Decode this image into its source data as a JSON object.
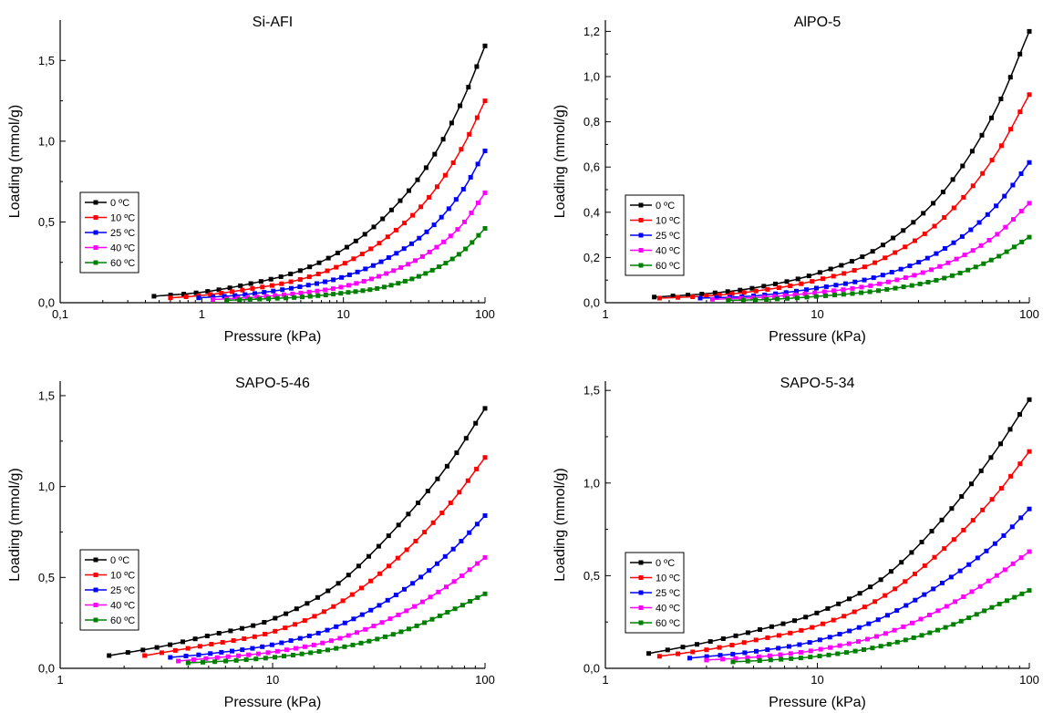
{
  "chart_data": [
    {
      "type": "line",
      "title": "Si-AFI",
      "xlabel": "Pressure (kPa)",
      "ylabel": "Loading (mmol/g)",
      "xscale": "log",
      "xlim": [
        0.1,
        100
      ],
      "ylim": [
        0,
        1.75
      ],
      "xticks": [
        {
          "v": 0.1,
          "label": "0,1"
        },
        {
          "v": 1,
          "label": "1"
        },
        {
          "v": 10,
          "label": "10"
        },
        {
          "v": 100,
          "label": "100"
        }
      ],
      "yticks": [
        {
          "v": 0,
          "label": "0,0"
        },
        {
          "v": 0.5,
          "label": "0,5"
        },
        {
          "v": 1.0,
          "label": "1,0"
        },
        {
          "v": 1.5,
          "label": "1,5"
        }
      ],
      "legend": "middle-left",
      "grid": false,
      "series": [
        {
          "name": "0 ºC",
          "color": "#000000",
          "x": [
            0.46,
            1,
            2,
            5,
            10,
            20,
            40,
            70,
            100
          ],
          "y": [
            0.04,
            0.065,
            0.11,
            0.2,
            0.33,
            0.54,
            0.86,
            1.26,
            1.59
          ]
        },
        {
          "name": "10 ºC",
          "color": "#ff0000",
          "x": [
            0.6,
            1,
            2,
            5,
            10,
            20,
            40,
            70,
            100
          ],
          "y": [
            0.03,
            0.045,
            0.08,
            0.145,
            0.24,
            0.4,
            0.65,
            0.97,
            1.25
          ]
        },
        {
          "name": "25 ºC",
          "color": "#0000ff",
          "x": [
            0.95,
            2,
            5,
            10,
            20,
            40,
            70,
            100
          ],
          "y": [
            0.03,
            0.05,
            0.1,
            0.16,
            0.27,
            0.45,
            0.7,
            0.94
          ]
        },
        {
          "name": "40 ºC",
          "color": "#ff00ff",
          "x": [
            1.2,
            2,
            5,
            10,
            20,
            40,
            70,
            100
          ],
          "y": [
            0.02,
            0.03,
            0.06,
            0.1,
            0.18,
            0.31,
            0.49,
            0.68
          ]
        },
        {
          "name": "60 ºC",
          "color": "#008000",
          "x": [
            1.5,
            3,
            5,
            10,
            20,
            40,
            70,
            100
          ],
          "y": [
            0.015,
            0.025,
            0.035,
            0.06,
            0.1,
            0.19,
            0.32,
            0.46
          ]
        }
      ]
    },
    {
      "type": "line",
      "title": "AlPO-5",
      "xlabel": "Pressure (kPa)",
      "ylabel": "Loading (mmol/g)",
      "xscale": "log",
      "xlim": [
        1,
        100
      ],
      "ylim": [
        0,
        1.25
      ],
      "xticks": [
        {
          "v": 1,
          "label": "1"
        },
        {
          "v": 10,
          "label": "10"
        },
        {
          "v": 100,
          "label": "100"
        }
      ],
      "yticks": [
        {
          "v": 0,
          "label": "0,0"
        },
        {
          "v": 0.2,
          "label": "0,2"
        },
        {
          "v": 0.4,
          "label": "0,4"
        },
        {
          "v": 0.6,
          "label": "0,6"
        },
        {
          "v": 0.8,
          "label": "0,8"
        },
        {
          "v": 1.0,
          "label": "1,0"
        },
        {
          "v": 1.2,
          "label": "1,2"
        }
      ],
      "legend": "middle-left",
      "grid": false,
      "series": [
        {
          "name": "0 ºC",
          "color": "#000000",
          "x": [
            1.7,
            3,
            5,
            10,
            20,
            40,
            70,
            100
          ],
          "y": [
            0.025,
            0.04,
            0.065,
            0.13,
            0.25,
            0.5,
            0.86,
            1.2
          ]
        },
        {
          "name": "10 ºC",
          "color": "#ff0000",
          "x": [
            1.8,
            3,
            5,
            10,
            20,
            40,
            70,
            100
          ],
          "y": [
            0.02,
            0.03,
            0.05,
            0.1,
            0.19,
            0.38,
            0.66,
            0.92
          ]
        },
        {
          "name": "25 ºC",
          "color": "#0000ff",
          "x": [
            2.8,
            5,
            10,
            20,
            40,
            70,
            100
          ],
          "y": [
            0.02,
            0.03,
            0.065,
            0.12,
            0.24,
            0.43,
            0.62
          ]
        },
        {
          "name": "40 ºC",
          "color": "#ff00ff",
          "x": [
            3.2,
            5,
            10,
            20,
            40,
            70,
            100
          ],
          "y": [
            0.015,
            0.022,
            0.045,
            0.085,
            0.17,
            0.3,
            0.44
          ]
        },
        {
          "name": "60 ºC",
          "color": "#008000",
          "x": [
            3.8,
            6,
            10,
            20,
            40,
            70,
            100
          ],
          "y": [
            0.01,
            0.015,
            0.028,
            0.055,
            0.11,
            0.2,
            0.29
          ]
        }
      ]
    },
    {
      "type": "line",
      "title": "SAPO-5-46",
      "xlabel": "Pressure (kPa)",
      "ylabel": "Loading (mmol/g)",
      "xscale": "log",
      "xlim": [
        1,
        100
      ],
      "ylim": [
        0,
        1.58
      ],
      "xticks": [
        {
          "v": 1,
          "label": "1"
        },
        {
          "v": 10,
          "label": "10"
        },
        {
          "v": 100,
          "label": "100"
        }
      ],
      "yticks": [
        {
          "v": 0,
          "label": "0,0"
        },
        {
          "v": 0.5,
          "label": "0,5"
        },
        {
          "v": 1.0,
          "label": "1,0"
        },
        {
          "v": 1.5,
          "label": "1,5"
        }
      ],
      "legend": "lower-left",
      "grid": false,
      "series": [
        {
          "name": "0 ºC",
          "color": "#000000",
          "x": [
            1.7,
            3,
            5,
            10,
            20,
            40,
            70,
            100
          ],
          "y": [
            0.07,
            0.12,
            0.18,
            0.27,
            0.46,
            0.8,
            1.15,
            1.43
          ]
        },
        {
          "name": "10 ºC",
          "color": "#ff0000",
          "x": [
            2.5,
            5,
            10,
            20,
            40,
            70,
            100
          ],
          "y": [
            0.07,
            0.13,
            0.2,
            0.35,
            0.62,
            0.92,
            1.16
          ]
        },
        {
          "name": "25 ºC",
          "color": "#0000ff",
          "x": [
            3.3,
            5,
            10,
            20,
            40,
            70,
            100
          ],
          "y": [
            0.06,
            0.08,
            0.13,
            0.23,
            0.42,
            0.65,
            0.84
          ]
        },
        {
          "name": "40 ºC",
          "color": "#ff00ff",
          "x": [
            3.6,
            5,
            10,
            20,
            40,
            70,
            100
          ],
          "y": [
            0.04,
            0.055,
            0.09,
            0.16,
            0.3,
            0.47,
            0.61
          ]
        },
        {
          "name": "60 ºC",
          "color": "#008000",
          "x": [
            4,
            6,
            10,
            20,
            40,
            70,
            100
          ],
          "y": [
            0.03,
            0.04,
            0.06,
            0.11,
            0.2,
            0.32,
            0.41
          ]
        }
      ]
    },
    {
      "type": "line",
      "title": "SAPO-5-34",
      "xlabel": "Pressure (kPa)",
      "ylabel": "Loading (mmol/g)",
      "xscale": "log",
      "xlim": [
        1,
        100
      ],
      "ylim": [
        0,
        1.55
      ],
      "xticks": [
        {
          "v": 1,
          "label": "1"
        },
        {
          "v": 10,
          "label": "10"
        },
        {
          "v": 100,
          "label": "100"
        }
      ],
      "yticks": [
        {
          "v": 0,
          "label": "0,0"
        },
        {
          "v": 0.5,
          "label": "0,5"
        },
        {
          "v": 1.0,
          "label": "1,0"
        },
        {
          "v": 1.5,
          "label": "1,5"
        }
      ],
      "legend": "lower-left",
      "grid": false,
      "series": [
        {
          "name": "0 ºC",
          "color": "#000000",
          "x": [
            1.6,
            3,
            5,
            10,
            20,
            40,
            70,
            100
          ],
          "y": [
            0.08,
            0.14,
            0.2,
            0.3,
            0.48,
            0.82,
            1.18,
            1.45
          ]
        },
        {
          "name": "10 ºC",
          "color": "#ff0000",
          "x": [
            1.8,
            3,
            5,
            10,
            20,
            40,
            70,
            100
          ],
          "y": [
            0.065,
            0.1,
            0.15,
            0.23,
            0.38,
            0.65,
            0.94,
            1.17
          ]
        },
        {
          "name": "25 ºC",
          "color": "#0000ff",
          "x": [
            2.5,
            5,
            10,
            20,
            40,
            70,
            100
          ],
          "y": [
            0.055,
            0.09,
            0.15,
            0.27,
            0.47,
            0.68,
            0.86
          ]
        },
        {
          "name": "40 ºC",
          "color": "#ff00ff",
          "x": [
            3,
            5,
            10,
            20,
            40,
            70,
            100
          ],
          "y": [
            0.045,
            0.06,
            0.1,
            0.18,
            0.33,
            0.5,
            0.63
          ]
        },
        {
          "name": "60 ºC",
          "color": "#008000",
          "x": [
            4,
            6,
            10,
            20,
            40,
            70,
            100
          ],
          "y": [
            0.035,
            0.045,
            0.065,
            0.12,
            0.22,
            0.34,
            0.42
          ]
        }
      ]
    }
  ]
}
